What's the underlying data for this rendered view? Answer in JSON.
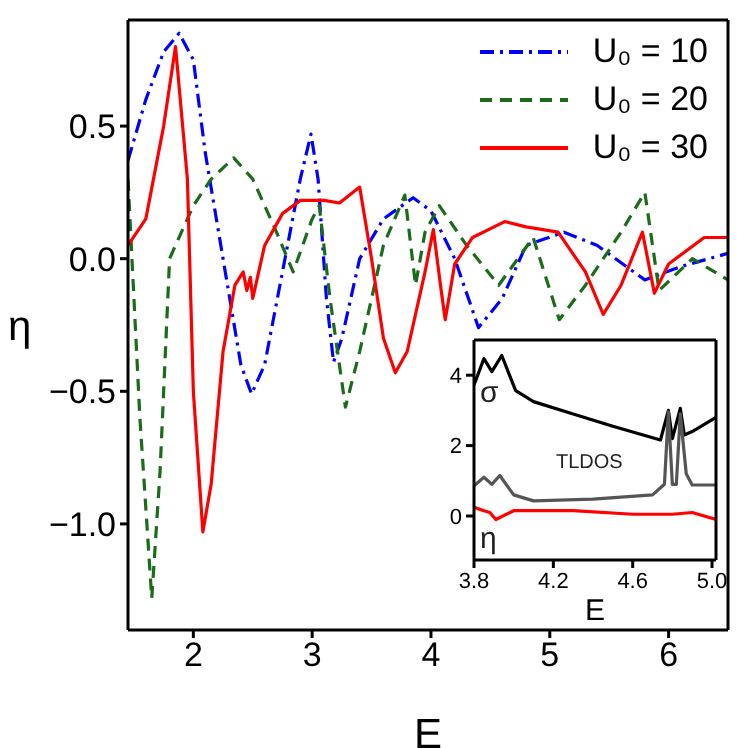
{
  "chart_data": [
    {
      "type": "line",
      "xlabel": "E",
      "ylabel": "η",
      "xlim": [
        1.45,
        6.5
      ],
      "ylim": [
        -1.4,
        0.9
      ],
      "xticks": [
        2,
        3,
        4,
        5,
        6
      ],
      "yticks": [
        {
          "value": 0.5,
          "label": "0.5"
        },
        {
          "value": 0,
          "label": "0.0"
        },
        {
          "value": -0.5,
          "label": "−0.5"
        },
        {
          "value": -1,
          "label": "−1.0"
        }
      ],
      "legend": "top right",
      "grid": false,
      "marker": "none",
      "series": [
        {
          "name": "U₀ = 10",
          "color": "#0000ff",
          "line_style": "dashdot",
          "x": [
            1.45,
            1.6,
            1.75,
            1.88,
            2.0,
            2.1,
            2.25,
            2.4,
            2.49,
            2.6,
            2.75,
            2.9,
            2.99,
            3.05,
            3.12,
            3.18,
            3.25,
            3.4,
            3.6,
            3.85,
            4.0,
            4.2,
            4.4,
            4.6,
            4.8,
            5.12,
            5.4,
            5.8,
            6.1,
            6.5
          ],
          "values": [
            0.37,
            0.6,
            0.78,
            0.85,
            0.75,
            0.4,
            0.0,
            -0.4,
            -0.51,
            -0.4,
            -0.05,
            0.3,
            0.47,
            0.3,
            -0.15,
            -0.39,
            -0.3,
            0.0,
            0.15,
            0.23,
            0.18,
            0.0,
            -0.26,
            -0.15,
            0.05,
            0.1,
            0.05,
            -0.08,
            -0.03,
            0.02
          ]
        },
        {
          "name": "U₀ = 20",
          "color": "#1a6b1a",
          "line_style": "dashed",
          "x": [
            1.45,
            1.55,
            1.65,
            1.72,
            1.8,
            1.9,
            2.0,
            2.15,
            2.34,
            2.5,
            2.7,
            2.84,
            3.0,
            3.06,
            3.15,
            3.28,
            3.4,
            3.6,
            3.78,
            3.87,
            3.95,
            4.07,
            4.3,
            4.57,
            4.86,
            5.08,
            5.3,
            5.6,
            5.8,
            5.92,
            6.2,
            6.5
          ],
          "values": [
            0.3,
            -0.6,
            -1.28,
            -0.8,
            0.0,
            0.1,
            0.2,
            0.3,
            0.38,
            0.3,
            0.1,
            -0.05,
            0.15,
            0.2,
            -0.15,
            -0.56,
            -0.35,
            0.05,
            0.24,
            -0.1,
            0.1,
            0.2,
            0.05,
            -0.1,
            0.08,
            -0.23,
            -0.1,
            0.1,
            0.25,
            -0.12,
            0.0,
            -0.08
          ]
        },
        {
          "name": "U₀ = 30",
          "color": "#ff0000",
          "line_style": "solid",
          "x": [
            1.45,
            1.6,
            1.75,
            1.85,
            1.95,
            2.0,
            2.08,
            2.15,
            2.25,
            2.35,
            2.42,
            2.45,
            2.48,
            2.5,
            2.6,
            2.75,
            2.9,
            3.1,
            3.23,
            3.4,
            3.5,
            3.6,
            3.7,
            3.8,
            3.95,
            4.02,
            4.08,
            4.12,
            4.2,
            4.35,
            4.62,
            4.8,
            5.07,
            5.3,
            5.45,
            5.6,
            5.78,
            5.88,
            6.0,
            6.3,
            6.5
          ],
          "values": [
            0.05,
            0.15,
            0.5,
            0.8,
            0.3,
            -0.5,
            -1.03,
            -0.85,
            -0.35,
            -0.1,
            -0.05,
            -0.12,
            -0.07,
            -0.15,
            0.05,
            0.17,
            0.22,
            0.22,
            0.21,
            0.27,
            0.0,
            -0.3,
            -0.43,
            -0.35,
            -0.05,
            0.11,
            -0.1,
            -0.23,
            -0.02,
            0.08,
            0.14,
            0.12,
            0.1,
            -0.05,
            -0.21,
            -0.1,
            0.1,
            -0.13,
            -0.02,
            0.08,
            0.08
          ]
        }
      ]
    },
    {
      "type": "line",
      "xlabel": "E",
      "xlim": [
        3.8,
        5.02
      ],
      "ylim": [
        -1.25,
        5
      ],
      "xticks": [
        3.8,
        4.2,
        4.6,
        {
          "value": 5,
          "label": "5.0"
        }
      ],
      "yticks": [
        0,
        2,
        4
      ],
      "grid": false,
      "marker": "none",
      "series": [
        {
          "name": "σ",
          "color": "#000000",
          "x": [
            3.8,
            3.85,
            3.89,
            3.94,
            4.01,
            4.1,
            4.3,
            4.5,
            4.74,
            4.78,
            4.8,
            4.84,
            4.86,
            4.9,
            5.02
          ],
          "values": [
            3.72,
            4.47,
            4.1,
            4.56,
            3.56,
            3.25,
            2.9,
            2.55,
            2.16,
            3.0,
            2.2,
            3.06,
            2.3,
            2.4,
            2.8
          ]
        },
        {
          "name": "TLDOS",
          "color": "#555555",
          "x": [
            3.8,
            3.85,
            3.89,
            3.93,
            4.0,
            4.1,
            4.4,
            4.7,
            4.76,
            4.78,
            4.8,
            4.82,
            4.84,
            4.87,
            4.9,
            5.02
          ],
          "values": [
            0.86,
            1.1,
            0.9,
            1.15,
            0.6,
            0.43,
            0.48,
            0.6,
            0.9,
            2.96,
            0.9,
            0.9,
            2.9,
            1.2,
            0.88,
            0.88
          ]
        },
        {
          "name": "η",
          "color": "#ff0000",
          "x": [
            3.8,
            3.85,
            3.88,
            3.91,
            4.0,
            4.3,
            4.6,
            4.8,
            4.9,
            5.02
          ],
          "values": [
            0.25,
            0.15,
            0.1,
            -0.1,
            0.15,
            0.15,
            0.05,
            0.05,
            0.1,
            -0.1
          ]
        }
      ]
    }
  ]
}
